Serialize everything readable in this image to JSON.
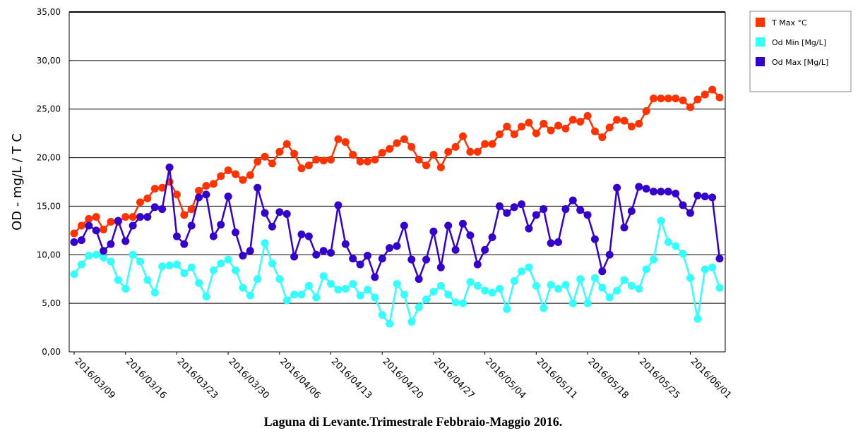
{
  "chart_data": {
    "type": "line",
    "caption": "Laguna di Levante.Trimestrale Febbraio-Maggio 2016.",
    "y_label": "OD - mg/L / T C",
    "categories": [
      "2016/03/09",
      null,
      null,
      null,
      null,
      null,
      null,
      "2016/03/16",
      null,
      null,
      null,
      null,
      null,
      null,
      "2016/03/23",
      null,
      null,
      null,
      null,
      null,
      null,
      "2016/03/30",
      null,
      null,
      null,
      null,
      null,
      null,
      "2016/04/06",
      null,
      null,
      null,
      null,
      null,
      null,
      "2016/04/13",
      null,
      null,
      null,
      null,
      null,
      null,
      "2016/04/20",
      null,
      null,
      null,
      null,
      null,
      null,
      "2016/04/27",
      null,
      null,
      null,
      null,
      null,
      null,
      "2016/05/04",
      null,
      null,
      null,
      null,
      null,
      null,
      "2016/05/11",
      null,
      null,
      null,
      null,
      null,
      null,
      "2016/05/18",
      null,
      null,
      null,
      null,
      null,
      null,
      "2016/05/25",
      null,
      null,
      null,
      null,
      null,
      null,
      "2016/06/01",
      null,
      null,
      null,
      null
    ],
    "series": [
      {
        "name": "T Max °C",
        "color": "#ff3300",
        "values": [
          12.2,
          13.0,
          13.7,
          13.9,
          12.6,
          13.4,
          13.4,
          13.9,
          13.9,
          15.4,
          15.8,
          16.8,
          16.9,
          17.5,
          16.2,
          14.1,
          14.7,
          16.6,
          17.1,
          17.3,
          18.1,
          18.7,
          18.3,
          17.7,
          18.2,
          19.6,
          20.1,
          19.4,
          20.6,
          21.4,
          20.4,
          18.9,
          19.2,
          19.8,
          19.7,
          19.8,
          21.9,
          21.6,
          20.3,
          19.6,
          19.6,
          19.8,
          20.5,
          20.9,
          21.5,
          21.9,
          21.1,
          19.8,
          19.2,
          20.3,
          19.0,
          20.6,
          21.1,
          22.2,
          20.6,
          20.6,
          21.4,
          21.4,
          22.4,
          23.2,
          22.4,
          23.2,
          23.6,
          22.5,
          23.5,
          22.8,
          23.3,
          23.0,
          23.9,
          23.7,
          24.3,
          22.7,
          22.1,
          23.1,
          23.9,
          23.8,
          23.2,
          23.5,
          24.8,
          26.1,
          26.1,
          26.1,
          26.1,
          25.9,
          25.2,
          26.0,
          26.5,
          27.0,
          26.2
        ]
      },
      {
        "name": "Od Min [Mg/L]",
        "color": "#33ffff",
        "values": [
          8.0,
          9.0,
          9.9,
          10.0,
          9.7,
          9.3,
          7.4,
          6.5,
          10.0,
          9.3,
          7.4,
          6.1,
          8.8,
          8.9,
          9.0,
          8.1,
          8.7,
          7.1,
          5.7,
          8.4,
          9.1,
          9.5,
          8.4,
          6.6,
          5.8,
          7.5,
          11.2,
          9.1,
          7.5,
          5.3,
          5.9,
          5.9,
          6.8,
          5.6,
          7.8,
          7.0,
          6.4,
          6.5,
          7.0,
          5.8,
          6.4,
          5.6,
          3.8,
          2.9,
          7.0,
          5.9,
          3.1,
          4.6,
          5.4,
          6.2,
          6.8,
          5.9,
          5.1,
          5.0,
          7.2,
          6.8,
          6.3,
          6.1,
          6.5,
          4.4,
          7.3,
          8.3,
          8.7,
          6.8,
          4.5,
          6.9,
          6.5,
          6.9,
          5.0,
          7.5,
          5.0,
          7.6,
          6.6,
          5.6,
          6.3,
          7.4,
          6.8,
          6.5,
          8.5,
          9.5,
          13.5,
          11.3,
          10.9,
          10.1,
          7.6,
          3.4,
          8.5,
          8.7,
          6.6
        ]
      },
      {
        "name": "Od Max [Mg/L]",
        "color": "#3300cc",
        "values": [
          11.3,
          11.5,
          13.0,
          12.5,
          10.4,
          11.1,
          13.5,
          11.4,
          13.0,
          13.9,
          13.9,
          14.9,
          14.7,
          19.0,
          11.9,
          11.1,
          13.0,
          15.9,
          16.2,
          11.9,
          13.1,
          16.0,
          12.3,
          9.9,
          10.4,
          16.9,
          14.3,
          12.9,
          14.4,
          14.2,
          9.8,
          12.1,
          11.9,
          10.0,
          10.4,
          10.2,
          15.1,
          11.1,
          9.6,
          9.0,
          9.9,
          7.7,
          9.6,
          10.7,
          10.9,
          13.0,
          9.5,
          7.5,
          9.5,
          12.4,
          8.7,
          13.0,
          10.5,
          13.2,
          12.0,
          9.0,
          10.5,
          11.8,
          15.0,
          14.3,
          14.9,
          15.2,
          12.7,
          14.1,
          14.7,
          11.2,
          11.3,
          14.7,
          15.6,
          14.6,
          14.1,
          11.6,
          8.3,
          10.0,
          16.9,
          12.8,
          14.5,
          17.0,
          16.8,
          16.5,
          16.5,
          16.5,
          16.3,
          15.1,
          14.3,
          16.1,
          16.0,
          15.9,
          9.6
        ]
      }
    ],
    "ylim": [
      0,
      35
    ],
    "yticks": [
      {
        "value": 0,
        "label": "0,00"
      },
      {
        "value": 5,
        "label": "5,00"
      },
      {
        "value": 10,
        "label": "10,00"
      },
      {
        "value": 15,
        "label": "15,00"
      },
      {
        "value": 20,
        "label": "20,00"
      },
      {
        "value": 25,
        "label": "25,00"
      },
      {
        "value": 30,
        "label": "30,00"
      },
      {
        "value": 35,
        "label": "35,00"
      }
    ],
    "grid": true,
    "legend": "right"
  }
}
